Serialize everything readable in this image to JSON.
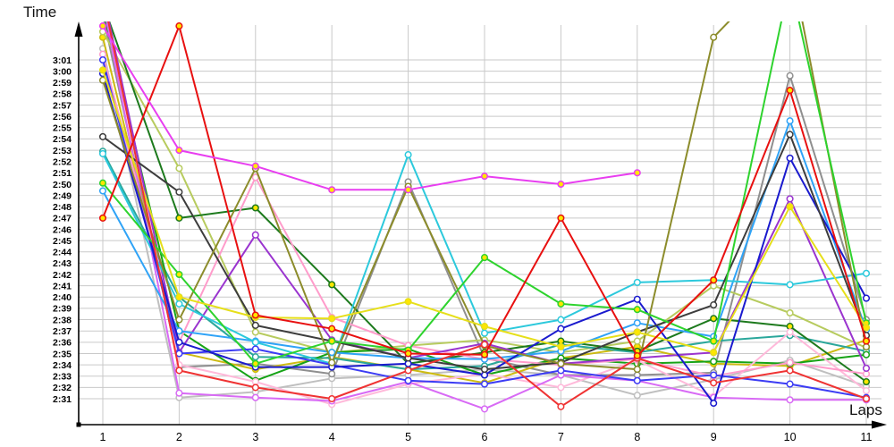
{
  "chart_data": {
    "type": "line",
    "title": "",
    "ylabel": "Time",
    "xlabel": "Laps",
    "grid": true,
    "legend_position": "none",
    "x_categories": [
      "1",
      "2",
      "3",
      "4",
      "5",
      "6",
      "7",
      "8",
      "9",
      "10",
      "11"
    ],
    "y_ticks": [
      "3:01",
      "3:00",
      "2:59",
      "2:58",
      "2:57",
      "2:56",
      "2:55",
      "2:54",
      "2:53",
      "2:52",
      "2:51",
      "2:50",
      "2:49",
      "2:48",
      "2:47",
      "2:46",
      "2:45",
      "2:44",
      "2:43",
      "2:42",
      "2:41",
      "2:40",
      "2:39",
      "2:38",
      "2:37",
      "2:36",
      "2:35",
      "2:34",
      "2:33",
      "2:32",
      "2:31"
    ],
    "y_axis_range_sec": [
      151,
      181
    ],
    "y_unit": "minutes:seconds (values stored as total seconds per lap)",
    "series": [
      {
        "name": "silver",
        "color": "#bfbfbf",
        "marker_fill": "#ffffff",
        "lap_times_sec": [
          182,
          151.1,
          151.6,
          152.8,
          153.1,
          153.6,
          153.1,
          151.3,
          152.7,
          154.4,
          152.1
        ]
      },
      {
        "name": "gray",
        "color": "#8f8f8f",
        "marker_fill": "#ffffff",
        "lap_times_sec": [
          185,
          153.8,
          154.1,
          153.2,
          170.2,
          154.6,
          153.1,
          153.1,
          153.3,
          179.6,
          158
        ]
      },
      {
        "name": "gold",
        "color": "#cdbb12",
        "marker_fill": "#ffe600",
        "lap_times_sec": [
          183,
          155.1,
          153.6,
          154.7,
          153.6,
          152.4,
          154.6,
          155.6,
          154.1,
          153.9,
          156.2
        ]
      },
      {
        "name": "yellow-green",
        "color": "#b7cb5e",
        "marker_fill": "#ffffff",
        "lap_times_sec": [
          183.5,
          171.4,
          156.9,
          155.1,
          155.7,
          156.2,
          155.1,
          156.1,
          161,
          158.6,
          155.5
        ]
      },
      {
        "name": "teal",
        "color": "#2aa79b",
        "marker_fill": "#ffffff",
        "lap_times_sec": [
          172.9,
          160,
          154.7,
          154.6,
          153.6,
          153.9,
          155.8,
          155.1,
          156.1,
          156.6,
          155.2
        ]
      },
      {
        "name": "green",
        "color": "#16a316",
        "marker_fill": "#ffffff",
        "lap_times_sec": [
          185.5,
          157,
          152.6,
          155.1,
          155.4,
          153.1,
          154.6,
          154.1,
          154.3,
          154.1,
          154.9
        ]
      },
      {
        "name": "dark-green",
        "color": "#1d7a1d",
        "marker_fill": "#ffe600",
        "lap_times_sec": [
          186,
          167,
          167.9,
          161.1,
          154.1,
          155.1,
          156.1,
          155.2,
          158.1,
          157.4,
          152.5
        ]
      },
      {
        "name": "light-pink",
        "color": "#ffb9da",
        "marker_fill": "#ffffff",
        "lap_times_sec": [
          186.5,
          154,
          152.5,
          150.5,
          152.3,
          153.2,
          152,
          154.4,
          151.2,
          156.9,
          151.7
        ]
      },
      {
        "name": "pink",
        "color": "#ff9ccb",
        "marker_fill": "#ffffff",
        "lap_times_sec": [
          181.5,
          156,
          170.6,
          158.2,
          155.7,
          154.5,
          154,
          154.5,
          153,
          154.2,
          153.2
        ]
      },
      {
        "name": "purple",
        "color": "#9a34cf",
        "marker_fill": "#ffffff",
        "lap_times_sec": [
          187,
          155.1,
          165.5,
          156.2,
          154.6,
          155.9,
          154.1,
          154.6,
          155.1,
          168.7,
          153.7
        ]
      },
      {
        "name": "violet",
        "color": "#d86af5",
        "marker_fill": "#ffffff",
        "lap_times_sec": [
          186.2,
          151.5,
          151.1,
          150.8,
          152.5,
          150.1,
          153.1,
          152.6,
          151.1,
          150.9,
          150.9
        ]
      },
      {
        "name": "dodger-blue",
        "color": "#2fa3f7",
        "marker_fill": "#ffffff",
        "lap_times_sec": [
          169.4,
          157,
          156.1,
          155.1,
          154.6,
          154.5,
          155.2,
          157.7,
          156.5,
          175.6,
          157.1
        ]
      },
      {
        "name": "cyan",
        "color": "#2cc9dc",
        "marker_fill": "#ffffff",
        "lap_times_sec": [
          172.7,
          159.4,
          156,
          154.1,
          172.6,
          156.8,
          158,
          161.3,
          161.5,
          161.1,
          162.1
        ]
      },
      {
        "name": "blue",
        "color": "#3c3cf4",
        "marker_fill": "#ffffff",
        "lap_times_sec": [
          181,
          155,
          155.4,
          154,
          152.6,
          152.3,
          153.5,
          152.6,
          153.1,
          152.3,
          151.1
        ]
      },
      {
        "name": "navy",
        "color": "#1a1ace",
        "marker_fill": "#ffffff",
        "lap_times_sec": [
          179.8,
          156,
          153.8,
          153.8,
          154.1,
          153.1,
          157.2,
          159.8,
          150.6,
          172.3,
          159.9
        ]
      },
      {
        "name": "black",
        "color": "#3d3d3d",
        "marker_fill": "#ffffff",
        "lap_times_sec": [
          174.2,
          169.3,
          157.5,
          156.1,
          154.6,
          153.6,
          154.2,
          156.9,
          159.3,
          174.4,
          156.6
        ]
      },
      {
        "name": "olive",
        "color": "#8c8c2b",
        "marker_fill": "#ffffff",
        "lap_times_sec": [
          179.2,
          158,
          171.4,
          154.2,
          169.8,
          155.7,
          154.1,
          153.6,
          183,
          190,
          155.6
        ]
      },
      {
        "name": "lime",
        "color": "#2ed32e",
        "marker_fill": "#ffe600",
        "lap_times_sec": [
          170.1,
          162,
          154.1,
          156.1,
          155.3,
          163.5,
          159.4,
          158.9,
          156.1,
          188,
          157.7
        ]
      },
      {
        "name": "yellow",
        "color": "#e6df1a",
        "marker_fill": "#ffe600",
        "lap_times_sec": [
          180.1,
          160,
          158.2,
          158.1,
          159.6,
          157.4,
          155.6,
          156.9,
          155.1,
          168,
          157.3
        ]
      },
      {
        "name": "red-low",
        "color": "#ef3333",
        "marker_fill": "#ffffff",
        "lap_times_sec": [
          186.8,
          153.5,
          152,
          151,
          153.5,
          155.8,
          150.3,
          154.6,
          152.4,
          153.5,
          151
        ]
      },
      {
        "name": "red",
        "color": "#e81010",
        "marker_fill": "#ffe600",
        "lap_times_sec": [
          167,
          184,
          158.4,
          157.2,
          155,
          154.9,
          167,
          154.8,
          161.5,
          178.3,
          156.1
        ]
      },
      {
        "name": "magenta",
        "color": "#e83ef0",
        "marker_fill": "#ffe600",
        "lap_times_sec": [
          184,
          173,
          171.6,
          169.5,
          169.5,
          170.7,
          170,
          171,
          null,
          null,
          null
        ]
      }
    ]
  }
}
